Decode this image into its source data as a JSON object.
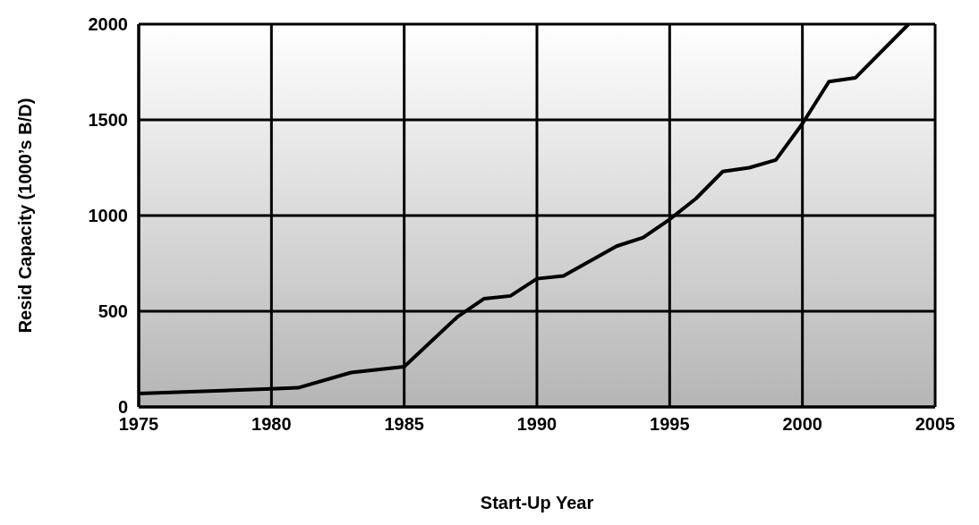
{
  "chart_data": {
    "type": "line",
    "xlabel": "Start-Up Year",
    "ylabel": "Resid Capacity (1000’s B/D)",
    "x": [
      1975,
      1980,
      1981,
      1983,
      1985,
      1987,
      1988,
      1989,
      1990,
      1991,
      1993,
      1994,
      1995,
      1996,
      1997,
      1998,
      1999,
      2000,
      2001,
      2002,
      2004
    ],
    "series": [
      {
        "color": "#000000",
        "values": [
          70,
          95,
          100,
          180,
          210,
          470,
          565,
          580,
          670,
          685,
          840,
          885,
          980,
          1090,
          1230,
          1250,
          1290,
          1480,
          1700,
          1720,
          2000
        ]
      }
    ],
    "xlim": [
      1975,
      2005
    ],
    "xticks": [
      1975,
      1980,
      1985,
      1990,
      1995,
      2000,
      2005
    ],
    "ylim": [
      0,
      2000
    ],
    "yticks": [
      0,
      500,
      1000,
      1500,
      2000
    ],
    "grid": true,
    "legend": false,
    "marker": "none",
    "line_style": "solid"
  }
}
